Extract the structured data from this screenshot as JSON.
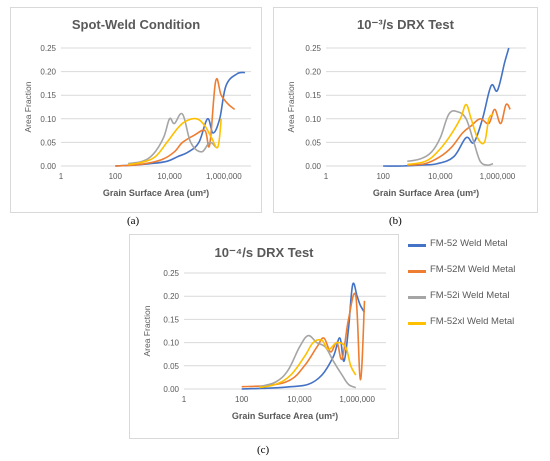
{
  "captions": {
    "a": "(a)",
    "b": "(b)",
    "c": "(c)"
  },
  "legend": [
    {
      "label": "FM-52 Weld Metal",
      "color": "#4472C4"
    },
    {
      "label": "FM-52M Weld Metal",
      "color": "#ED7D31"
    },
    {
      "label": "FM-52i Weld Metal",
      "color": "#A5A5A5"
    },
    {
      "label": "FM-52xl Weld Metal",
      "color": "#FFC000"
    }
  ],
  "chart_data": [
    {
      "type": "line",
      "title": "Spot-Weld Condition",
      "xlabel": "Grain Surface Area (um²)",
      "ylabel": "Area Fraction",
      "x_scale": "log",
      "xlim": [
        1,
        10000000
      ],
      "ylim": [
        0,
        0.25
      ],
      "x_ticks": [
        {
          "v": 1,
          "label": "1"
        },
        {
          "v": 100,
          "label": "100"
        },
        {
          "v": 10000,
          "label": "10,000"
        },
        {
          "v": 1000000,
          "label": "1,000,000"
        }
      ],
      "y_ticks": [
        "0.00",
        "0.05",
        "0.10",
        "0.15",
        "0.20",
        "0.25"
      ],
      "grid": "horizontal",
      "series": [
        {
          "name": "FM-52 Weld Metal",
          "color": "#4472C4",
          "points": [
            [
              100,
              0
            ],
            [
              500,
              0.002
            ],
            [
              2000,
              0.005
            ],
            [
              8000,
              0.01
            ],
            [
              20000,
              0.02
            ],
            [
              50000,
              0.03
            ],
            [
              120000,
              0.05
            ],
            [
              250000,
              0.1
            ],
            [
              400000,
              0.07
            ],
            [
              700000,
              0.1
            ],
            [
              1200000,
              0.17
            ],
            [
              3000000,
              0.195
            ],
            [
              6000000,
              0.198
            ]
          ]
        },
        {
          "name": "FM-52M Weld Metal",
          "color": "#ED7D31",
          "points": [
            [
              100,
              0
            ],
            [
              500,
              0.002
            ],
            [
              2000,
              0.007
            ],
            [
              6000,
              0.015
            ],
            [
              15000,
              0.03
            ],
            [
              30000,
              0.05
            ],
            [
              80000,
              0.065
            ],
            [
              200000,
              0.075
            ],
            [
              300000,
              0.045
            ],
            [
              500000,
              0.18
            ],
            [
              800000,
              0.15
            ],
            [
              1500000,
              0.13
            ],
            [
              2500000,
              0.12
            ]
          ]
        },
        {
          "name": "FM-52i Weld Metal",
          "color": "#A5A5A5",
          "points": [
            [
              300,
              0.005
            ],
            [
              1000,
              0.01
            ],
            [
              2500,
              0.025
            ],
            [
              6000,
              0.06
            ],
            [
              10000,
              0.1
            ],
            [
              15000,
              0.09
            ],
            [
              30000,
              0.11
            ],
            [
              60000,
              0.05
            ],
            [
              150000,
              0.03
            ],
            [
              300000,
              0.05
            ],
            [
              500000,
              0.04
            ]
          ]
        },
        {
          "name": "FM-52xl Weld Metal",
          "color": "#FFC000",
          "points": [
            [
              300,
              0.003
            ],
            [
              1000,
              0.008
            ],
            [
              3000,
              0.02
            ],
            [
              8000,
              0.05
            ],
            [
              20000,
              0.08
            ],
            [
              40000,
              0.095
            ],
            [
              100000,
              0.1
            ],
            [
              200000,
              0.085
            ],
            [
              350000,
              0.06
            ],
            [
              600000,
              0.04
            ],
            [
              800000,
              0.1
            ]
          ]
        }
      ]
    },
    {
      "type": "line",
      "title": "10⁻³/s DRX Test",
      "xlabel": "Grain Surface Area (um²)",
      "ylabel": "Area Fraction",
      "x_scale": "log",
      "xlim": [
        1,
        10000000
      ],
      "ylim": [
        0,
        0.25
      ],
      "x_ticks": [
        {
          "v": 1,
          "label": "1"
        },
        {
          "v": 100,
          "label": "100"
        },
        {
          "v": 10000,
          "label": "10,000"
        },
        {
          "v": 1000000,
          "label": "1,000,000"
        }
      ],
      "y_ticks": [
        "0.00",
        "0.05",
        "0.10",
        "0.15",
        "0.20",
        "0.25"
      ],
      "grid": "horizontal",
      "series": [
        {
          "name": "FM-52 Weld Metal",
          "color": "#4472C4",
          "points": [
            [
              100,
              0
            ],
            [
              500,
              0
            ],
            [
              2000,
              0.002
            ],
            [
              8000,
              0.005
            ],
            [
              30000,
              0.02
            ],
            [
              80000,
              0.06
            ],
            [
              150000,
              0.05
            ],
            [
              300000,
              0.1
            ],
            [
              600000,
              0.17
            ],
            [
              1000000,
              0.16
            ],
            [
              1800000,
              0.22
            ],
            [
              2500000,
              0.25
            ]
          ]
        },
        {
          "name": "FM-52M Weld Metal",
          "color": "#ED7D31",
          "points": [
            [
              700,
              0.002
            ],
            [
              3000,
              0.005
            ],
            [
              10000,
              0.02
            ],
            [
              25000,
              0.04
            ],
            [
              60000,
              0.07
            ],
            [
              120000,
              0.085
            ],
            [
              250000,
              0.1
            ],
            [
              500000,
              0.09
            ],
            [
              800000,
              0.12
            ],
            [
              1300000,
              0.09
            ],
            [
              2000000,
              0.13
            ],
            [
              2800000,
              0.12
            ]
          ]
        },
        {
          "name": "FM-52i Weld Metal",
          "color": "#A5A5A5",
          "points": [
            [
              700,
              0.01
            ],
            [
              2000,
              0.015
            ],
            [
              5000,
              0.03
            ],
            [
              10000,
              0.06
            ],
            [
              20000,
              0.11
            ],
            [
              40000,
              0.115
            ],
            [
              80000,
              0.1
            ],
            [
              150000,
              0.05
            ],
            [
              250000,
              0.01
            ],
            [
              450000,
              0.002
            ],
            [
              700000,
              0.005
            ]
          ]
        },
        {
          "name": "FM-52xl Weld Metal",
          "color": "#FFC000",
          "points": [
            [
              700,
              0.003
            ],
            [
              3000,
              0.01
            ],
            [
              8000,
              0.03
            ],
            [
              20000,
              0.06
            ],
            [
              50000,
              0.1
            ],
            [
              80000,
              0.13
            ],
            [
              120000,
              0.1
            ],
            [
              200000,
              0.06
            ],
            [
              350000,
              0.05
            ],
            [
              500000,
              0.1
            ],
            [
              700000,
              0.11
            ]
          ]
        }
      ]
    },
    {
      "type": "line",
      "title": "10⁻⁴/s DRX Test",
      "xlabel": "Grain Surface Area (um²)",
      "ylabel": "Area Fraction",
      "x_scale": "log",
      "xlim": [
        1,
        10000000
      ],
      "ylim": [
        0,
        0.25
      ],
      "x_ticks": [
        {
          "v": 1,
          "label": "1"
        },
        {
          "v": 100,
          "label": "100"
        },
        {
          "v": 10000,
          "label": "10,000"
        },
        {
          "v": 1000000,
          "label": "1,000,000"
        }
      ],
      "y_ticks": [
        "0.00",
        "0.05",
        "0.10",
        "0.15",
        "0.20",
        "0.25"
      ],
      "grid": "horizontal",
      "series": [
        {
          "name": "FM-52 Weld Metal",
          "color": "#4472C4",
          "points": [
            [
              100,
              0
            ],
            [
              1000,
              0.002
            ],
            [
              5000,
              0.005
            ],
            [
              20000,
              0.01
            ],
            [
              60000,
              0.03
            ],
            [
              150000,
              0.07
            ],
            [
              250000,
              0.11
            ],
            [
              350000,
              0.06
            ],
            [
              500000,
              0.13
            ],
            [
              700000,
              0.225
            ],
            [
              1000000,
              0.2
            ],
            [
              1300000,
              0.18
            ],
            [
              1800000,
              0.165
            ]
          ]
        },
        {
          "name": "FM-52M Weld Metal",
          "color": "#ED7D31",
          "points": [
            [
              100,
              0.005
            ],
            [
              1000,
              0.008
            ],
            [
              5000,
              0.02
            ],
            [
              15000,
              0.05
            ],
            [
              40000,
              0.09
            ],
            [
              70000,
              0.11
            ],
            [
              120000,
              0.08
            ],
            [
              200000,
              0.1
            ],
            [
              300000,
              0.065
            ],
            [
              500000,
              0.15
            ],
            [
              900000,
              0.2
            ],
            [
              1300000,
              0.02
            ],
            [
              1800000,
              0.19
            ]
          ]
        },
        {
          "name": "FM-52i Weld Metal",
          "color": "#A5A5A5",
          "points": [
            [
              400,
              0.005
            ],
            [
              1500,
              0.015
            ],
            [
              4000,
              0.04
            ],
            [
              10000,
              0.09
            ],
            [
              20000,
              0.115
            ],
            [
              40000,
              0.1
            ],
            [
              80000,
              0.09
            ],
            [
              150000,
              0.06
            ],
            [
              300000,
              0.03
            ],
            [
              500000,
              0.01
            ],
            [
              900000,
              0.003
            ]
          ]
        },
        {
          "name": "FM-52xl Weld Metal",
          "color": "#FFC000",
          "points": [
            [
              400,
              0.003
            ],
            [
              1500,
              0.01
            ],
            [
              5000,
              0.03
            ],
            [
              15000,
              0.07
            ],
            [
              30000,
              0.1
            ],
            [
              60000,
              0.105
            ],
            [
              100000,
              0.085
            ],
            [
              200000,
              0.1
            ],
            [
              400000,
              0.09
            ],
            [
              600000,
              0.05
            ],
            [
              900000,
              0.03
            ]
          ]
        }
      ]
    }
  ]
}
